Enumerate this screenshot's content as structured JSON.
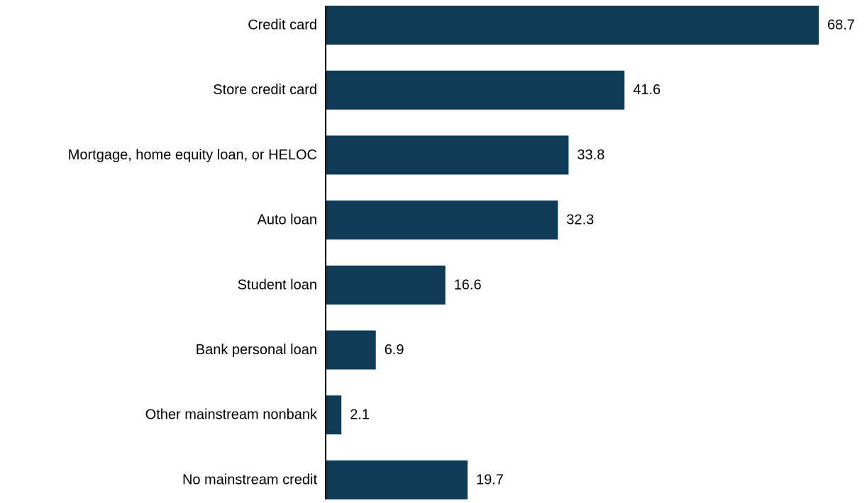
{
  "chart_data": {
    "type": "bar",
    "orientation": "horizontal",
    "title": "",
    "xlabel": "",
    "ylabel": "",
    "categories": [
      "Credit card",
      "Store credit card",
      "Mortgage, home equity loan, or HELOC",
      "Auto loan",
      "Student loan",
      "Bank personal loan",
      "Other mainstream nonbank",
      "No mainstream credit"
    ],
    "values": [
      68.7,
      41.6,
      33.8,
      32.3,
      16.6,
      6.9,
      2.1,
      19.7
    ],
    "value_labels": [
      "68.7",
      "41.6",
      "33.8",
      "32.3",
      "16.6",
      "6.9",
      "2.1",
      "19.7"
    ],
    "xlim": [
      0,
      68.7
    ],
    "grid": false,
    "legend": "none",
    "colors": {
      "bar": "#0f3b56",
      "axis": "#000000",
      "text": "#000000"
    }
  }
}
